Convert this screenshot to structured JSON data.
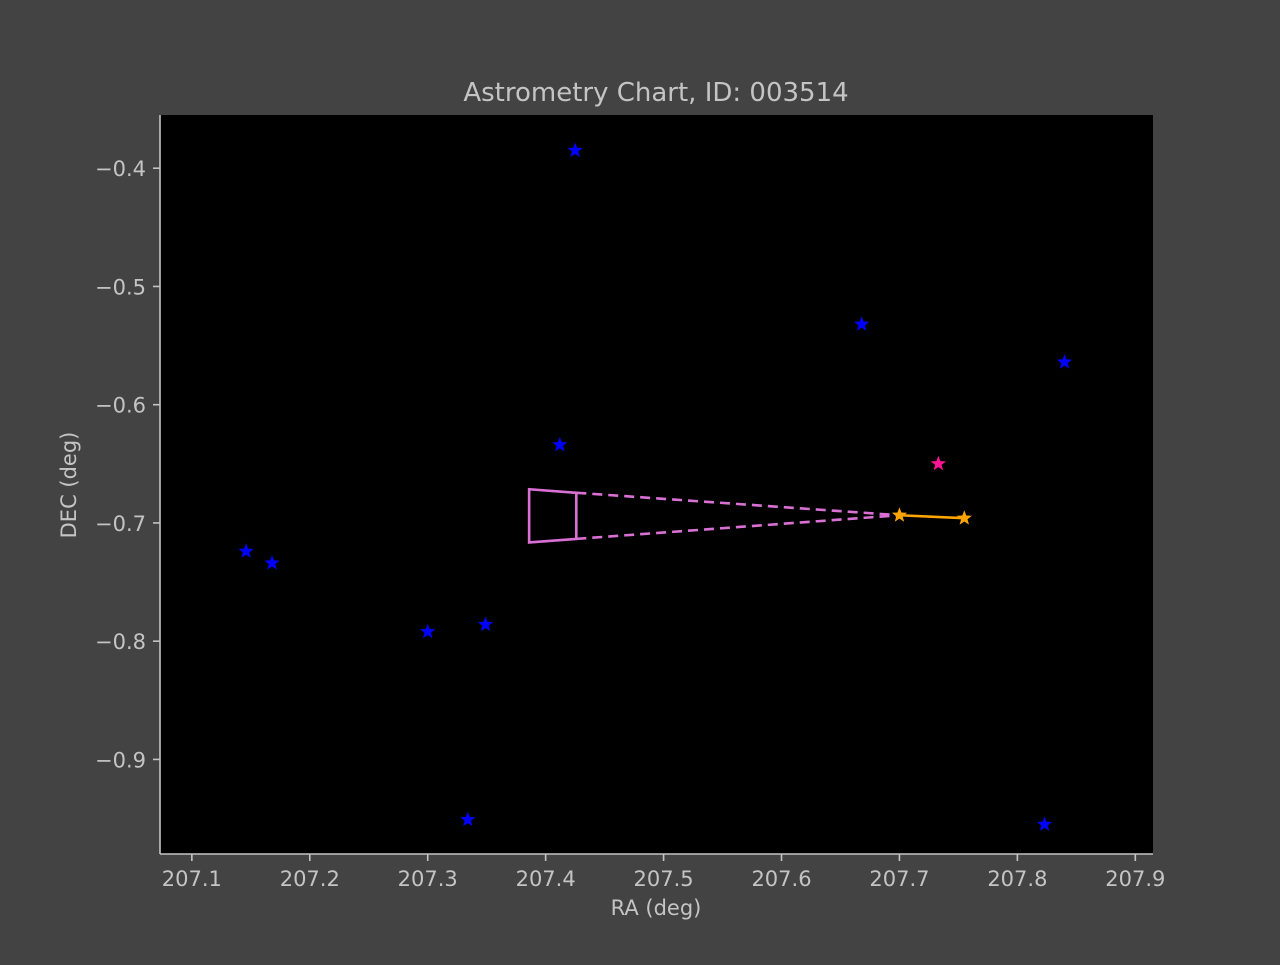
{
  "chart_data": {
    "type": "scatter",
    "title": "Astrometry Chart, ID: 003514",
    "xlabel": "RA (deg)",
    "ylabel": "DEC (deg)",
    "xlim": [
      207.073,
      207.915
    ],
    "ylim": [
      -0.98,
      -0.355
    ],
    "xticks": [
      207.1,
      207.2,
      207.3,
      207.4,
      207.5,
      207.6,
      207.7,
      207.8,
      207.9
    ],
    "xtick_labels": [
      "207.1",
      "207.2",
      "207.3",
      "207.4",
      "207.5",
      "207.6",
      "207.7",
      "207.8",
      "207.9"
    ],
    "yticks": [
      -0.4,
      -0.5,
      -0.6,
      -0.7,
      -0.8,
      -0.9
    ],
    "ytick_labels": [
      "−0.4",
      "−0.5",
      "−0.6",
      "−0.7",
      "−0.8",
      "−0.9"
    ],
    "grid": false,
    "colors": {
      "figure_background": "#434343",
      "plot_background": "#000000",
      "text": "#c4c4c4",
      "reference_stars": "#0000ff",
      "target_star": "#ff1493",
      "track": "#ffa500",
      "uncertainty_cone": "#da70d6"
    },
    "reference_stars": [
      {
        "ra": 207.425,
        "dec": -0.385
      },
      {
        "ra": 207.668,
        "dec": -0.532
      },
      {
        "ra": 207.84,
        "dec": -0.564
      },
      {
        "ra": 207.412,
        "dec": -0.634
      },
      {
        "ra": 207.146,
        "dec": -0.724
      },
      {
        "ra": 207.168,
        "dec": -0.734
      },
      {
        "ra": 207.349,
        "dec": -0.786
      },
      {
        "ra": 207.3,
        "dec": -0.792
      },
      {
        "ra": 207.334,
        "dec": -0.951
      },
      {
        "ra": 207.823,
        "dec": -0.955
      }
    ],
    "target_star": {
      "ra": 207.733,
      "dec": -0.65
    },
    "track": [
      {
        "ra": 207.7,
        "dec": -0.6935
      },
      {
        "ra": 207.755,
        "dec": -0.696
      }
    ],
    "uncertainty_cone": {
      "apex": {
        "ra": 207.7,
        "dec": -0.6935
      },
      "near_edge": {
        "ra": 207.426,
        "dec_top": -0.6745,
        "dec_bottom": -0.7135
      },
      "far_edge": {
        "ra": 207.386,
        "dec_top": -0.6715,
        "dec_bottom": -0.7165
      }
    }
  }
}
